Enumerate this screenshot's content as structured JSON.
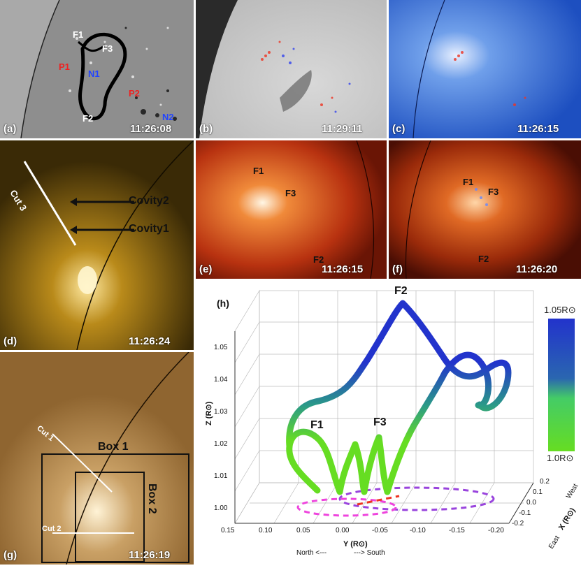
{
  "panels": {
    "a": {
      "label": "(a)",
      "time": "11:26:08",
      "tags": {
        "F1": "F1",
        "F3": "F3",
        "P1": "P1",
        "N1": "N1",
        "P2": "P2",
        "F2": "F2",
        "N2": "N2"
      }
    },
    "b": {
      "label": "(b)",
      "time": "11:29:11"
    },
    "c": {
      "label": "(c)",
      "time": "11:26:15"
    },
    "d": {
      "label": "(d)",
      "time": "11:26:24",
      "cut": "Cut 3",
      "cavity2": "Covity2",
      "cavity1": "Covity1"
    },
    "e": {
      "label": "(e)",
      "time": "11:26:15",
      "tags": {
        "F1": "F1",
        "F3": "F3",
        "F2": "F2"
      }
    },
    "f": {
      "label": "(f)",
      "time": "11:26:20",
      "tags": {
        "F1": "F1",
        "F3": "F3",
        "F2": "F2"
      }
    },
    "g": {
      "label": "(g)",
      "time": "11:26:19",
      "box1": "Box 1",
      "box2": "Box 2",
      "cut1": "Cut 1",
      "cut2": "Cut 2"
    },
    "h": {
      "label": "(h)",
      "z_label": "Z (R⊙)",
      "y_label_left": "North <---",
      "y_label_mid": "Y (R⊙)",
      "y_label_right": "---> South",
      "x_label_left": "East",
      "x_label_mid": "X (R⊙)",
      "x_label_right": "West",
      "z_ticks": [
        "1.00",
        "1.01",
        "1.02",
        "1.03",
        "1.04",
        "1.05"
      ],
      "y_ticks": [
        "0.15",
        "0.10",
        "0.05",
        "0.00",
        "-0.05",
        "-0.10",
        "-0.15",
        "-0.20"
      ],
      "x_ticks": [
        "0.2",
        "0.1",
        "0.0",
        "-0.1",
        "-0.2"
      ],
      "filament_labels": {
        "F1": "F1",
        "F2": "F2",
        "F3": "F3"
      },
      "colorbar_top": "1.05R⊙",
      "colorbar_bottom": "1.0R⊙",
      "colors": {
        "low": "#66dd22",
        "high": "#2233cc",
        "dash_purple": "#9944dd",
        "dash_red": "#ee3322",
        "dash_magenta": "#ee44dd"
      }
    }
  }
}
